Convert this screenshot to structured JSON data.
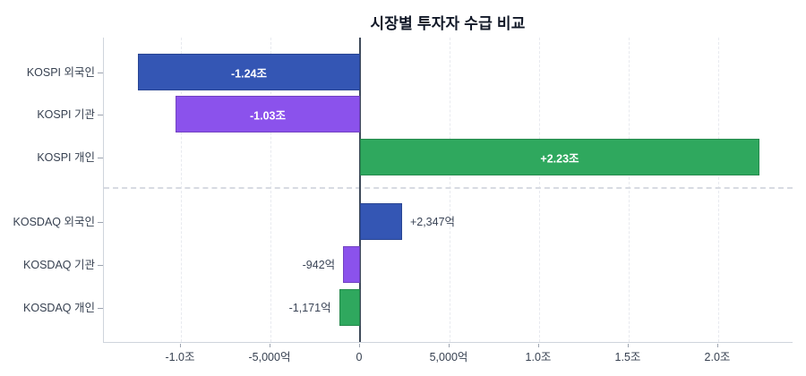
{
  "chart_data": {
    "type": "bar",
    "orientation": "horizontal",
    "title": "시장별 투자자 수급 비교",
    "categories": [
      "KOSPI 외국인",
      "KOSPI 기관",
      "KOSPI 개인",
      "KOSDAQ 외국인",
      "KOSDAQ 기관",
      "KOSDAQ 개인"
    ],
    "slugs": [
      "kospi-foreign",
      "kospi-institution",
      "kospi-individual",
      "kosdaq-foreign",
      "kosdaq-institution",
      "kosdaq-individual"
    ],
    "values_jo": [
      -1.24,
      -1.03,
      2.23,
      0.2347,
      -0.0942,
      -0.1171
    ],
    "values_eok": [
      -12400,
      -10300,
      22300,
      2347,
      -942,
      -1171
    ],
    "bar_labels": [
      "-1.24조",
      "-1.03조",
      "+2.23조",
      "+2,347억",
      "-942억",
      "-1,171억"
    ],
    "bar_color_keys": [
      "blue",
      "purple",
      "green",
      "blue",
      "purple",
      "green"
    ],
    "label_placement": [
      "inside",
      "inside",
      "inside",
      "outside",
      "outside",
      "outside"
    ],
    "x_ticks": [
      {
        "value": -1.0,
        "label": "-1.0조"
      },
      {
        "value": -0.5,
        "label": "-5,000억"
      },
      {
        "value": 0,
        "label": "0"
      },
      {
        "value": 0.5,
        "label": "5,000억"
      },
      {
        "value": 1.0,
        "label": "1.0조"
      },
      {
        "value": 1.5,
        "label": "1.5조"
      },
      {
        "value": 2.0,
        "label": "2.0조"
      }
    ],
    "xlim_jo": [
      -1.43,
      2.42
    ],
    "grid": "vertical-dashed",
    "zero_line": true,
    "section_separator_after_index": 2,
    "legend": "none"
  },
  "colors": {
    "blue": "#3456b4",
    "purple": "#8b52ec",
    "green": "#2fa85e",
    "title_text": "#111827",
    "axis_text": "#374151",
    "outside_label_text": "#3a4456",
    "inside_label_text": "#ffffff",
    "grid": "#e8eaef",
    "spine": "#cfd4dc",
    "zero_line": "#3f4a5a",
    "separator": "#d8dbe2",
    "background": "#ffffff"
  }
}
